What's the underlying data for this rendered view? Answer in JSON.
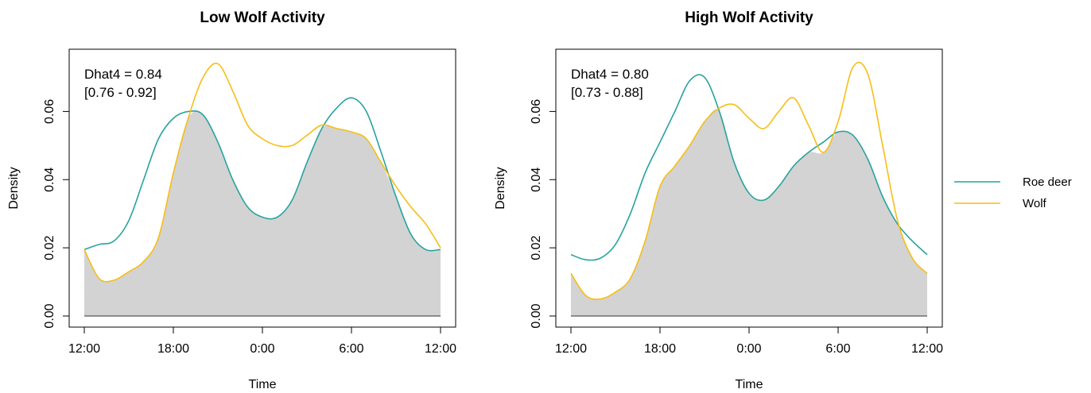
{
  "colors": {
    "roe_deer": "#27a39e",
    "wolf": "#f7be16",
    "overlap": "#d3d3d3"
  },
  "legend": {
    "placement": "right",
    "entries": [
      "Roe deer",
      "Wolf"
    ]
  },
  "chart_data": [
    {
      "type": "area",
      "title": "Low Wolf Activity",
      "xlabel": "Time",
      "ylabel": "Density",
      "xlim": [
        12,
        36
      ],
      "ylim": [
        0,
        0.075
      ],
      "xtick_labels": [
        "12:00",
        "18:00",
        "0:00",
        "6:00",
        "12:00"
      ],
      "ytick_labels": [
        "0.00",
        "0.02",
        "0.04",
        "0.06"
      ],
      "annotation": [
        "Dhat4 = 0.84",
        "[0.76 - 0.92]"
      ],
      "x": [
        12,
        13,
        14,
        15,
        16,
        17,
        18,
        19,
        20,
        21,
        22,
        23,
        24,
        25,
        26,
        27,
        28,
        29,
        30,
        31,
        32,
        33,
        34,
        35,
        36
      ],
      "series": [
        {
          "name": "Roe deer",
          "values": [
            0.0195,
            0.021,
            0.022,
            0.028,
            0.04,
            0.052,
            0.058,
            0.06,
            0.059,
            0.051,
            0.04,
            0.032,
            0.029,
            0.029,
            0.034,
            0.045,
            0.055,
            0.061,
            0.064,
            0.06,
            0.048,
            0.035,
            0.024,
            0.0195,
            0.0195
          ]
        },
        {
          "name": "Wolf",
          "values": [
            0.0195,
            0.011,
            0.0105,
            0.013,
            0.016,
            0.023,
            0.042,
            0.058,
            0.07,
            0.074,
            0.066,
            0.056,
            0.052,
            0.05,
            0.05,
            0.053,
            0.056,
            0.055,
            0.054,
            0.052,
            0.045,
            0.038,
            0.032,
            0.027,
            0.02
          ]
        }
      ]
    },
    {
      "type": "area",
      "title": "High Wolf Activity",
      "xlabel": "Time",
      "ylabel": "Density",
      "xlim": [
        12,
        36
      ],
      "ylim": [
        0,
        0.075
      ],
      "xtick_labels": [
        "12:00",
        "18:00",
        "0:00",
        "6:00",
        "12:00"
      ],
      "ytick_labels": [
        "0.00",
        "0.02",
        "0.04",
        "0.06"
      ],
      "annotation": [
        "Dhat4 = 0.80",
        "[0.73 - 0.88]"
      ],
      "x": [
        12,
        13,
        14,
        15,
        16,
        17,
        18,
        19,
        20,
        21,
        22,
        23,
        24,
        25,
        26,
        27,
        28,
        29,
        30,
        31,
        32,
        33,
        34,
        35,
        36
      ],
      "series": [
        {
          "name": "Roe deer",
          "values": [
            0.018,
            0.0165,
            0.017,
            0.021,
            0.03,
            0.042,
            0.051,
            0.06,
            0.069,
            0.07,
            0.06,
            0.045,
            0.036,
            0.034,
            0.038,
            0.044,
            0.048,
            0.051,
            0.054,
            0.053,
            0.046,
            0.035,
            0.027,
            0.022,
            0.018
          ]
        },
        {
          "name": "Wolf",
          "values": [
            0.0125,
            0.006,
            0.005,
            0.007,
            0.011,
            0.022,
            0.038,
            0.044,
            0.05,
            0.057,
            0.061,
            0.062,
            0.058,
            0.055,
            0.06,
            0.064,
            0.056,
            0.048,
            0.057,
            0.073,
            0.071,
            0.05,
            0.028,
            0.017,
            0.0125
          ]
        }
      ]
    }
  ]
}
